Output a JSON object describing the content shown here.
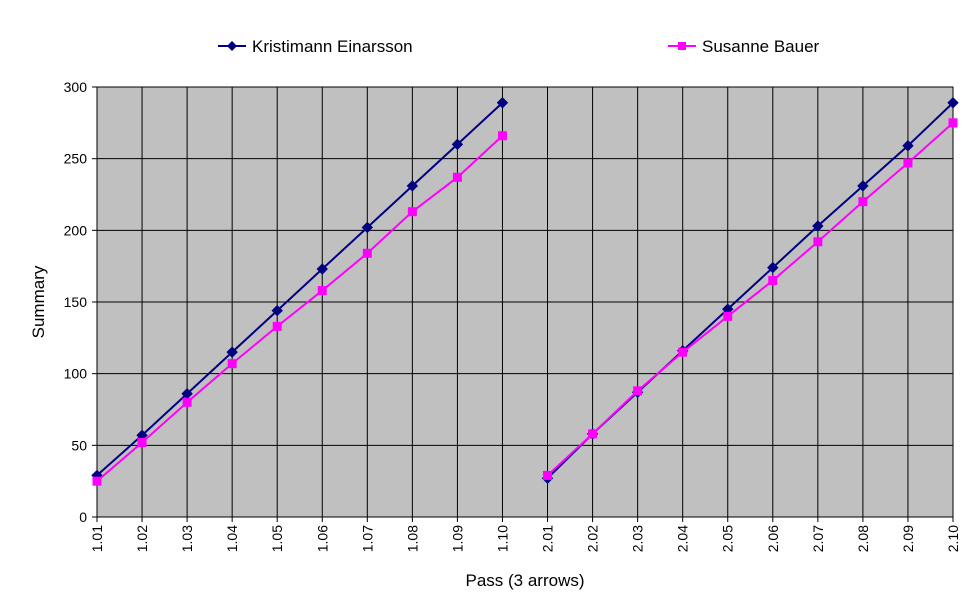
{
  "chart_data": {
    "type": "line",
    "xlabel": "Pass (3 arrows)",
    "ylabel": "Summary",
    "ylim": [
      0,
      300
    ],
    "yticks": [
      0,
      50,
      100,
      150,
      200,
      250,
      300
    ],
    "grid": true,
    "legend_position": "top",
    "plot_background": "#c0c0c0",
    "categories": [
      "1.01",
      "1.02",
      "1.03",
      "1.04",
      "1.05",
      "1.06",
      "1.07",
      "1.08",
      "1.09",
      "1.10",
      "2.01",
      "2.02",
      "2.03",
      "2.04",
      "2.05",
      "2.06",
      "2.07",
      "2.08",
      "2.09",
      "2.10"
    ],
    "series": [
      {
        "name": "Kristimann Einarsson",
        "color": "#000080",
        "marker": "diamond",
        "values": [
          29,
          57,
          86,
          115,
          144,
          173,
          202,
          231,
          260,
          289,
          27,
          58,
          87,
          116,
          145,
          174,
          203,
          231,
          259,
          289
        ]
      },
      {
        "name": "Susanne Bauer",
        "color": "#ff00ff",
        "marker": "square",
        "values": [
          25,
          52,
          80,
          107,
          133,
          158,
          184,
          213,
          237,
          266,
          29,
          58,
          88,
          115,
          140,
          165,
          192,
          220,
          247,
          275
        ]
      }
    ]
  }
}
